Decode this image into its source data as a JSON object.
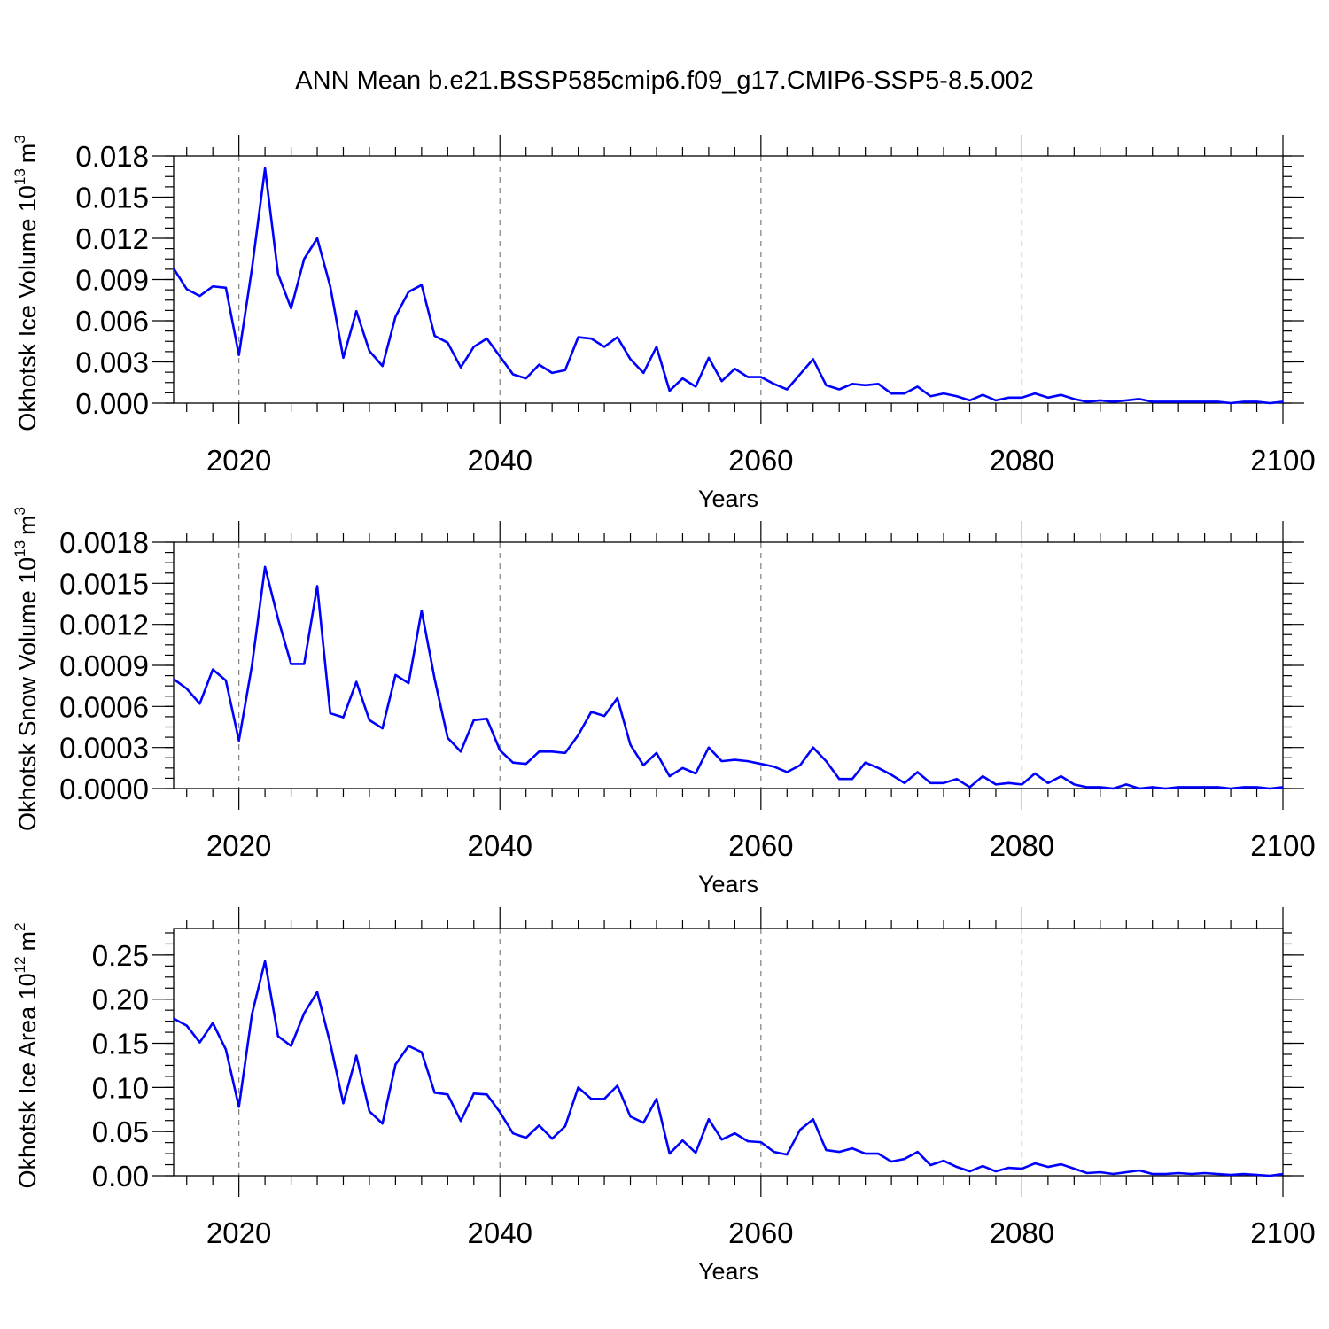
{
  "title": "ANN Mean b.e21.BSSP585cmip6.f09_g17.CMIP6-SSP5-8.5.002",
  "chart_data": [
    {
      "type": "line",
      "ylabel": "Okhotsk Ice Volume 10",
      "ylabel_exp": "13",
      "ylabel_unit": "m",
      "ylabel_unit_exp": "3",
      "xlabel": "Years",
      "xlim": [
        2015,
        2100
      ],
      "ylim": [
        0,
        0.018
      ],
      "xticks": [
        "2020",
        "2040",
        "2060",
        "2080",
        "2100"
      ],
      "yticks": [
        "0.000",
        "0.003",
        "0.006",
        "0.009",
        "0.012",
        "0.015",
        "0.018"
      ],
      "grid_x": true,
      "color": "#0000ff",
      "x_start": 2015,
      "values": [
        0.0098,
        0.0083,
        0.0078,
        0.0085,
        0.0084,
        0.0035,
        0.0098,
        0.0171,
        0.0094,
        0.0069,
        0.0105,
        0.012,
        0.0085,
        0.0033,
        0.0067,
        0.0038,
        0.0027,
        0.0063,
        0.0081,
        0.0086,
        0.0049,
        0.0044,
        0.0026,
        0.0041,
        0.0047,
        0.0034,
        0.0021,
        0.0018,
        0.0028,
        0.0022,
        0.0024,
        0.0048,
        0.0047,
        0.0041,
        0.0048,
        0.0032,
        0.0022,
        0.0041,
        0.0009,
        0.0018,
        0.0012,
        0.0033,
        0.0016,
        0.0025,
        0.0019,
        0.0019,
        0.0014,
        0.001,
        0.0021,
        0.0032,
        0.0013,
        0.001,
        0.0014,
        0.0013,
        0.0014,
        0.0007,
        0.0007,
        0.0012,
        0.0005,
        0.0007,
        0.0005,
        0.0002,
        0.0006,
        0.0002,
        0.0004,
        0.0004,
        0.0007,
        0.0004,
        0.0006,
        0.0003,
        0.0001,
        0.0002,
        0.0001,
        0.0002,
        0.0003,
        0.0001,
        0.0001,
        0.0001,
        0.0001,
        0.0001,
        0.0001,
        0.0,
        0.0001,
        0.0001,
        0.0,
        0.0001
      ]
    },
    {
      "type": "line",
      "ylabel": "Okhotsk Snow Volume 10",
      "ylabel_exp": "13",
      "ylabel_unit": "m",
      "ylabel_unit_exp": "3",
      "xlabel": "Years",
      "xlim": [
        2015,
        2100
      ],
      "ylim": [
        0,
        0.0018
      ],
      "xticks": [
        "2020",
        "2040",
        "2060",
        "2080",
        "2100"
      ],
      "yticks": [
        "0.0000",
        "0.0003",
        "0.0006",
        "0.0009",
        "0.0012",
        "0.0015",
        "0.0018"
      ],
      "grid_x": true,
      "color": "#0000ff",
      "x_start": 2015,
      "values": [
        0.0008,
        0.00073,
        0.00062,
        0.00087,
        0.00079,
        0.00035,
        0.0009,
        0.00162,
        0.00124,
        0.00091,
        0.00091,
        0.00148,
        0.00055,
        0.00052,
        0.00078,
        0.0005,
        0.00044,
        0.00083,
        0.00077,
        0.0013,
        0.0008,
        0.00037,
        0.00027,
        0.0005,
        0.00051,
        0.00028,
        0.00019,
        0.00018,
        0.00027,
        0.00027,
        0.00026,
        0.00039,
        0.00056,
        0.00053,
        0.00066,
        0.00032,
        0.00017,
        0.00026,
        9e-05,
        0.00015,
        0.00011,
        0.0003,
        0.0002,
        0.00021,
        0.0002,
        0.00018,
        0.00016,
        0.00012,
        0.00017,
        0.0003,
        0.0002,
        7e-05,
        7e-05,
        0.00019,
        0.00015,
        0.0001,
        4e-05,
        0.00012,
        4e-05,
        4e-05,
        7e-05,
        1e-05,
        9e-05,
        3e-05,
        4e-05,
        3e-05,
        0.00011,
        4e-05,
        9e-05,
        3e-05,
        1e-05,
        1e-05,
        0.0,
        3e-05,
        0.0,
        1e-05,
        0.0,
        1e-05,
        1e-05,
        1e-05,
        1e-05,
        0.0,
        1e-05,
        1e-05,
        0.0,
        1e-05
      ]
    },
    {
      "type": "line",
      "ylabel": "Okhotsk Ice Area 10",
      "ylabel_exp": "12",
      "ylabel_unit": "m",
      "ylabel_unit_exp": "2",
      "xlabel": "Years",
      "xlim": [
        2015,
        2100
      ],
      "ylim": [
        0,
        0.28
      ],
      "xticks": [
        "2020",
        "2040",
        "2060",
        "2080",
        "2100"
      ],
      "yticks": [
        "0.00",
        "0.05",
        "0.10",
        "0.15",
        "0.20",
        "0.25"
      ],
      "grid_x": true,
      "color": "#0000ff",
      "x_start": 2015,
      "values": [
        0.178,
        0.17,
        0.151,
        0.173,
        0.143,
        0.078,
        0.183,
        0.243,
        0.158,
        0.147,
        0.184,
        0.208,
        0.15,
        0.082,
        0.136,
        0.073,
        0.059,
        0.126,
        0.147,
        0.14,
        0.094,
        0.092,
        0.062,
        0.093,
        0.092,
        0.072,
        0.048,
        0.043,
        0.057,
        0.042,
        0.056,
        0.1,
        0.087,
        0.087,
        0.102,
        0.067,
        0.06,
        0.087,
        0.025,
        0.04,
        0.026,
        0.064,
        0.041,
        0.048,
        0.039,
        0.038,
        0.027,
        0.024,
        0.052,
        0.064,
        0.029,
        0.027,
        0.031,
        0.025,
        0.025,
        0.016,
        0.019,
        0.027,
        0.012,
        0.017,
        0.01,
        0.005,
        0.011,
        0.005,
        0.009,
        0.008,
        0.014,
        0.01,
        0.013,
        0.008,
        0.003,
        0.004,
        0.002,
        0.004,
        0.006,
        0.002,
        0.002,
        0.003,
        0.002,
        0.003,
        0.002,
        0.001,
        0.002,
        0.001,
        0.0,
        0.002
      ]
    }
  ]
}
